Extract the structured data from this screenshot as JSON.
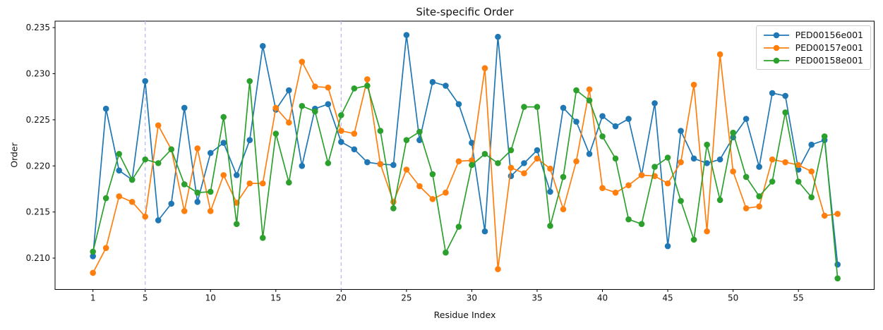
{
  "chart_data": {
    "type": "line",
    "title": "Site-specific Order",
    "xlabel": "Residue Index",
    "ylabel": "Order",
    "x_start": 1,
    "x_step": 1,
    "n_points": 58,
    "xlim": [
      -1.9,
      60.8
    ],
    "ylim": [
      0.2066,
      0.2357
    ],
    "x_ticks": [
      1,
      5,
      10,
      15,
      20,
      25,
      30,
      35,
      40,
      45,
      50,
      55
    ],
    "y_tick_values": [
      0.21,
      0.215,
      0.22,
      0.225,
      0.23,
      0.235
    ],
    "y_tick_labels": [
      "0.210",
      "0.215",
      "0.220",
      "0.225",
      "0.230",
      "0.235"
    ],
    "grid": false,
    "marker": "o",
    "legend_position": "upper right",
    "vlines": {
      "positions": [
        5,
        20
      ],
      "color": "#b4b6f8",
      "style": "dashed"
    },
    "axis_color": "#000000",
    "series": [
      {
        "name": "PED00156e001",
        "color": "#1f77b4",
        "values": [
          0.2102,
          0.2262,
          0.2195,
          0.2185,
          0.2292,
          0.2141,
          0.2159,
          0.2263,
          0.2161,
          0.2214,
          0.2225,
          0.219,
          0.2228,
          0.233,
          0.2261,
          0.2282,
          0.22,
          0.2262,
          0.2267,
          0.2226,
          0.2218,
          0.2204,
          0.2202,
          0.2201,
          0.2342,
          0.2228,
          0.2291,
          0.2287,
          0.2267,
          0.2225,
          0.2129,
          0.234,
          0.2189,
          0.2203,
          0.2217,
          0.2172,
          0.2263,
          0.2248,
          0.2213,
          0.2254,
          0.2243,
          0.2251,
          0.219,
          0.2268,
          0.2113,
          0.2238,
          0.2208,
          0.2203,
          0.2207,
          0.2231,
          0.2251,
          0.2199,
          0.2279,
          0.2276,
          0.2196,
          0.2223,
          0.2228,
          0.2093
        ]
      },
      {
        "name": "PED00157e001",
        "color": "#ff7f0e",
        "values": [
          0.2084,
          0.2111,
          0.2167,
          0.2161,
          0.2145,
          0.2244,
          0.2218,
          0.2151,
          0.2219,
          0.2151,
          0.219,
          0.216,
          0.2181,
          0.2181,
          0.2263,
          0.2247,
          0.2313,
          0.2286,
          0.2285,
          0.2238,
          0.2235,
          0.2294,
          0.2202,
          0.2161,
          0.2196,
          0.2178,
          0.2164,
          0.2171,
          0.2205,
          0.2206,
          0.2306,
          0.2088,
          0.2198,
          0.2192,
          0.2208,
          0.2197,
          0.2153,
          0.2205,
          0.2283,
          0.2176,
          0.2171,
          0.2179,
          0.219,
          0.2189,
          0.2181,
          0.2204,
          0.2288,
          0.2129,
          0.2321,
          0.2194,
          0.2154,
          0.2156,
          0.2207,
          0.2204,
          0.2201,
          0.2194,
          0.2146,
          0.2148
        ]
      },
      {
        "name": "PED00158e001",
        "color": "#2ca02c",
        "values": [
          0.2107,
          0.2165,
          0.2213,
          0.2185,
          0.2207,
          0.2203,
          0.2218,
          0.218,
          0.2171,
          0.2172,
          0.2253,
          0.2137,
          0.2292,
          0.2122,
          0.2235,
          0.2182,
          0.2265,
          0.2259,
          0.2203,
          0.2255,
          0.2284,
          0.2287,
          0.2238,
          0.2154,
          0.2228,
          0.2237,
          0.2191,
          0.2106,
          0.2134,
          0.2201,
          0.2213,
          0.2203,
          0.2217,
          0.2264,
          0.2264,
          0.2135,
          0.2188,
          0.2282,
          0.2271,
          0.2232,
          0.2208,
          0.2142,
          0.2137,
          0.2199,
          0.2209,
          0.2162,
          0.212,
          0.2223,
          0.2163,
          0.2236,
          0.2188,
          0.2167,
          0.2183,
          0.2258,
          0.2183,
          0.2166,
          0.2232,
          0.2078
        ]
      }
    ]
  }
}
